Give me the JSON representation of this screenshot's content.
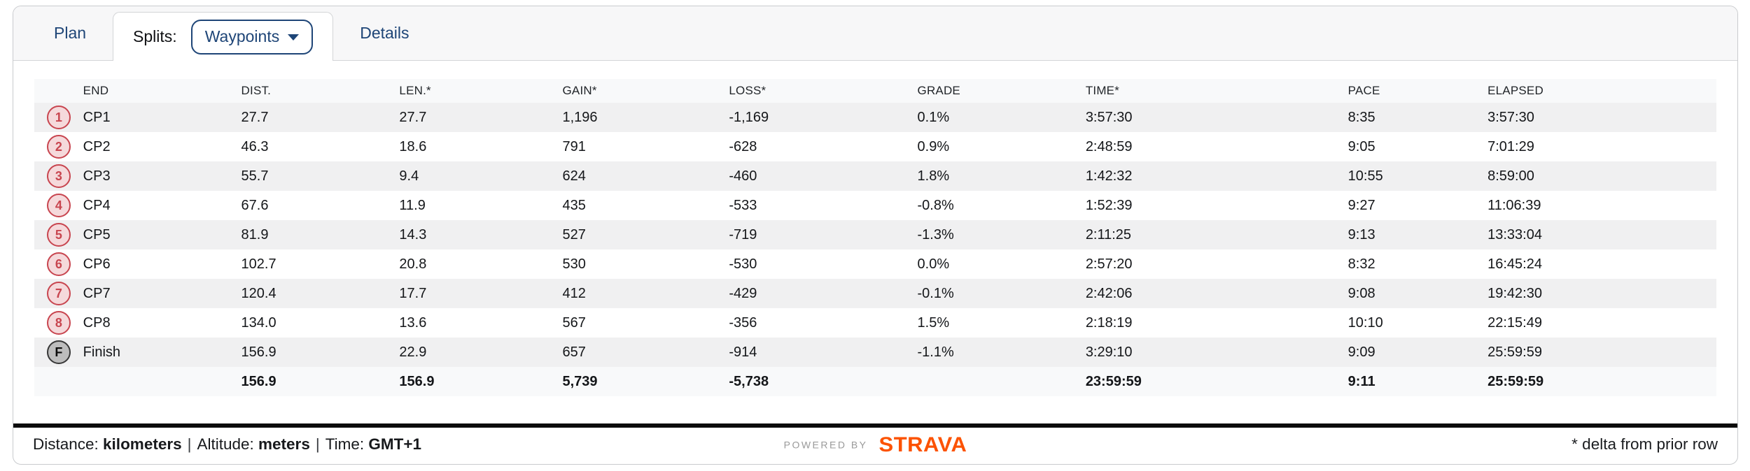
{
  "tabs": {
    "plan": "Plan",
    "splits_label": "Splits:",
    "waypoints_button": "Waypoints",
    "details": "Details"
  },
  "table": {
    "headers": [
      "END",
      "DIST.",
      "LEN.*",
      "GAIN*",
      "LOSS*",
      "GRADE",
      "TIME*",
      "PACE",
      "ELAPSED"
    ],
    "rows": [
      {
        "marker": "1",
        "marker_type": "checkpoint",
        "end": "CP1",
        "dist": "27.7",
        "len": "27.7",
        "gain": "1,196",
        "loss": "-1,169",
        "grade": "0.1%",
        "time": "3:57:30",
        "pace": "8:35",
        "elapsed": "3:57:30"
      },
      {
        "marker": "2",
        "marker_type": "checkpoint",
        "end": "CP2",
        "dist": "46.3",
        "len": "18.6",
        "gain": "791",
        "loss": "-628",
        "grade": "0.9%",
        "time": "2:48:59",
        "pace": "9:05",
        "elapsed": "7:01:29"
      },
      {
        "marker": "3",
        "marker_type": "checkpoint",
        "end": "CP3",
        "dist": "55.7",
        "len": "9.4",
        "gain": "624",
        "loss": "-460",
        "grade": "1.8%",
        "time": "1:42:32",
        "pace": "10:55",
        "elapsed": "8:59:00"
      },
      {
        "marker": "4",
        "marker_type": "checkpoint",
        "end": "CP4",
        "dist": "67.6",
        "len": "11.9",
        "gain": "435",
        "loss": "-533",
        "grade": "-0.8%",
        "time": "1:52:39",
        "pace": "9:27",
        "elapsed": "11:06:39"
      },
      {
        "marker": "5",
        "marker_type": "checkpoint",
        "end": "CP5",
        "dist": "81.9",
        "len": "14.3",
        "gain": "527",
        "loss": "-719",
        "grade": "-1.3%",
        "time": "2:11:25",
        "pace": "9:13",
        "elapsed": "13:33:04"
      },
      {
        "marker": "6",
        "marker_type": "checkpoint",
        "end": "CP6",
        "dist": "102.7",
        "len": "20.8",
        "gain": "530",
        "loss": "-530",
        "grade": "0.0%",
        "time": "2:57:20",
        "pace": "8:32",
        "elapsed": "16:45:24"
      },
      {
        "marker": "7",
        "marker_type": "checkpoint",
        "end": "CP7",
        "dist": "120.4",
        "len": "17.7",
        "gain": "412",
        "loss": "-429",
        "grade": "-0.1%",
        "time": "2:42:06",
        "pace": "9:08",
        "elapsed": "19:42:30"
      },
      {
        "marker": "8",
        "marker_type": "checkpoint",
        "end": "CP8",
        "dist": "134.0",
        "len": "13.6",
        "gain": "567",
        "loss": "-356",
        "grade": "1.5%",
        "time": "2:18:19",
        "pace": "10:10",
        "elapsed": "22:15:49"
      },
      {
        "marker": "F",
        "marker_type": "finish",
        "end": "Finish",
        "dist": "156.9",
        "len": "22.9",
        "gain": "657",
        "loss": "-914",
        "grade": "-1.1%",
        "time": "3:29:10",
        "pace": "9:09",
        "elapsed": "25:59:59"
      }
    ],
    "totals": {
      "marker": "",
      "end": "",
      "dist": "156.9",
      "len": "156.9",
      "gain": "5,739",
      "loss": "-5,738",
      "grade": "",
      "time": "23:59:59",
      "pace": "9:11",
      "elapsed": "25:59:59"
    }
  },
  "footer": {
    "units": [
      {
        "label": "Distance:",
        "value": "kilometers"
      },
      {
        "label": "Altitude:",
        "value": "meters"
      },
      {
        "label": "Time:",
        "value": "GMT+1"
      }
    ],
    "separator": "|",
    "powered_by": "POWERED BY",
    "brand": "STRAVA",
    "note": "* delta from prior row"
  },
  "colors": {
    "accent_navy": "#1e4577",
    "marker_red": "#c8454f",
    "marker_red_bg": "#f5d9db",
    "strava_orange": "#fc5200",
    "stripe": "#f0f0f1",
    "header_bg": "#f8f9fa"
  }
}
